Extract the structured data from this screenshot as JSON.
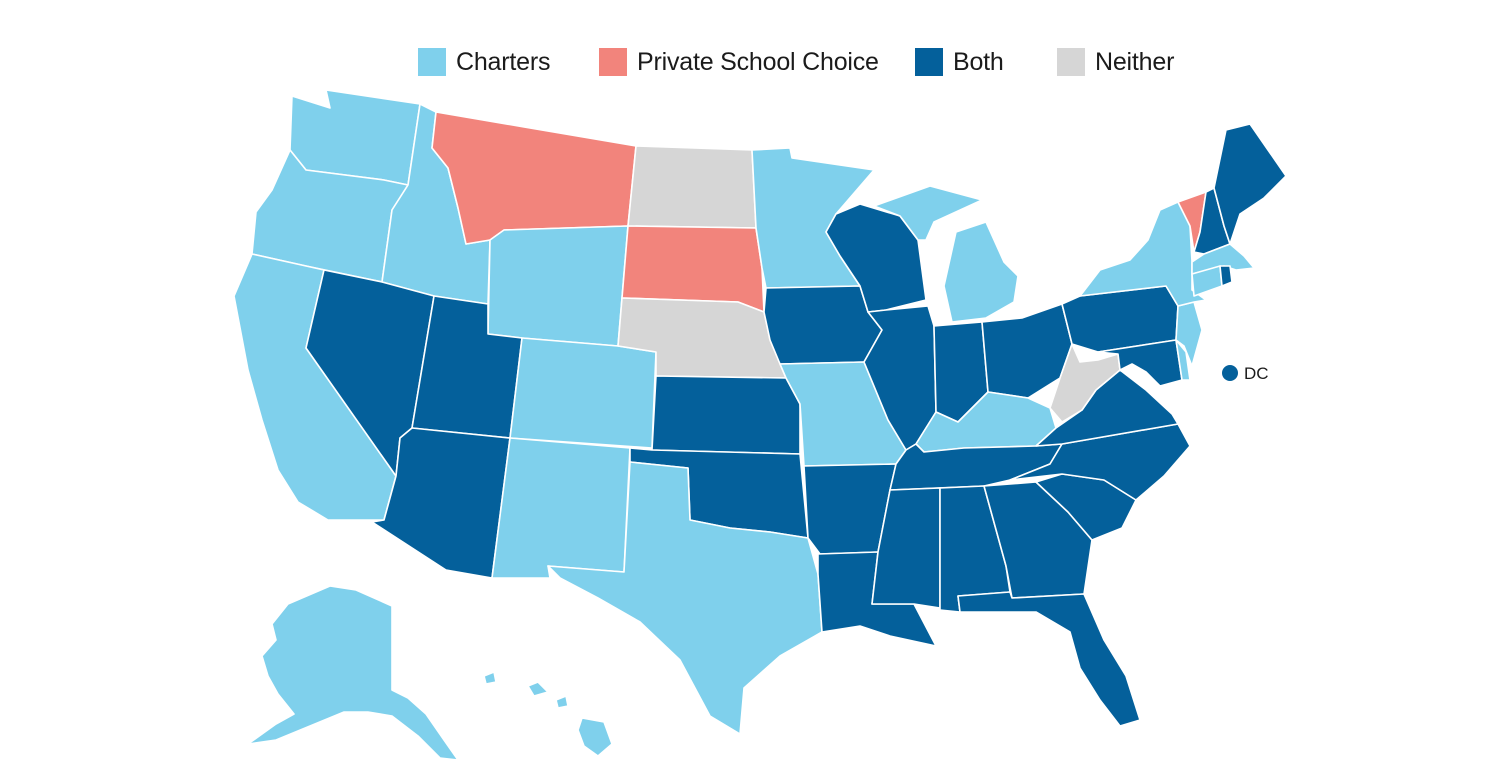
{
  "legend": [
    {
      "key": "charters",
      "label": "Charters",
      "color": "#7fd0ec"
    },
    {
      "key": "private",
      "label": "Private School Choice",
      "color": "#f2847c"
    },
    {
      "key": "both",
      "label": "Both",
      "color": "#04609b"
    },
    {
      "key": "neither",
      "label": "Neither",
      "color": "#d6d6d6"
    }
  ],
  "dc": {
    "label": "DC",
    "category": "both"
  },
  "states": [
    {
      "abbr": "WA",
      "category": "charters"
    },
    {
      "abbr": "OR",
      "category": "charters"
    },
    {
      "abbr": "CA",
      "category": "charters"
    },
    {
      "abbr": "ID",
      "category": "charters"
    },
    {
      "abbr": "NV",
      "category": "both"
    },
    {
      "abbr": "MT",
      "category": "private"
    },
    {
      "abbr": "WY",
      "category": "charters"
    },
    {
      "abbr": "UT",
      "category": "both"
    },
    {
      "abbr": "AZ",
      "category": "both"
    },
    {
      "abbr": "CO",
      "category": "charters"
    },
    {
      "abbr": "NM",
      "category": "charters"
    },
    {
      "abbr": "ND",
      "category": "neither"
    },
    {
      "abbr": "SD",
      "category": "private"
    },
    {
      "abbr": "NE",
      "category": "neither"
    },
    {
      "abbr": "KS",
      "category": "both"
    },
    {
      "abbr": "OK",
      "category": "both"
    },
    {
      "abbr": "TX",
      "category": "charters"
    },
    {
      "abbr": "MN",
      "category": "charters"
    },
    {
      "abbr": "IA",
      "category": "both"
    },
    {
      "abbr": "MO",
      "category": "charters"
    },
    {
      "abbr": "AR",
      "category": "both"
    },
    {
      "abbr": "LA",
      "category": "both"
    },
    {
      "abbr": "WI",
      "category": "both"
    },
    {
      "abbr": "IL",
      "category": "both"
    },
    {
      "abbr": "MI",
      "category": "charters"
    },
    {
      "abbr": "IN",
      "category": "both"
    },
    {
      "abbr": "OH",
      "category": "both"
    },
    {
      "abbr": "KY",
      "category": "charters"
    },
    {
      "abbr": "TN",
      "category": "both"
    },
    {
      "abbr": "MS",
      "category": "both"
    },
    {
      "abbr": "AL",
      "category": "both"
    },
    {
      "abbr": "GA",
      "category": "both"
    },
    {
      "abbr": "FL",
      "category": "both"
    },
    {
      "abbr": "SC",
      "category": "both"
    },
    {
      "abbr": "NC",
      "category": "both"
    },
    {
      "abbr": "VA",
      "category": "both"
    },
    {
      "abbr": "WV",
      "category": "neither"
    },
    {
      "abbr": "PA",
      "category": "both"
    },
    {
      "abbr": "NY",
      "category": "charters"
    },
    {
      "abbr": "NJ",
      "category": "charters"
    },
    {
      "abbr": "DE",
      "category": "charters"
    },
    {
      "abbr": "MD",
      "category": "both"
    },
    {
      "abbr": "CT",
      "category": "charters"
    },
    {
      "abbr": "RI",
      "category": "both"
    },
    {
      "abbr": "MA",
      "category": "charters"
    },
    {
      "abbr": "VT",
      "category": "private"
    },
    {
      "abbr": "NH",
      "category": "both"
    },
    {
      "abbr": "ME",
      "category": "both"
    },
    {
      "abbr": "AK",
      "category": "charters"
    },
    {
      "abbr": "HI",
      "category": "charters"
    }
  ]
}
